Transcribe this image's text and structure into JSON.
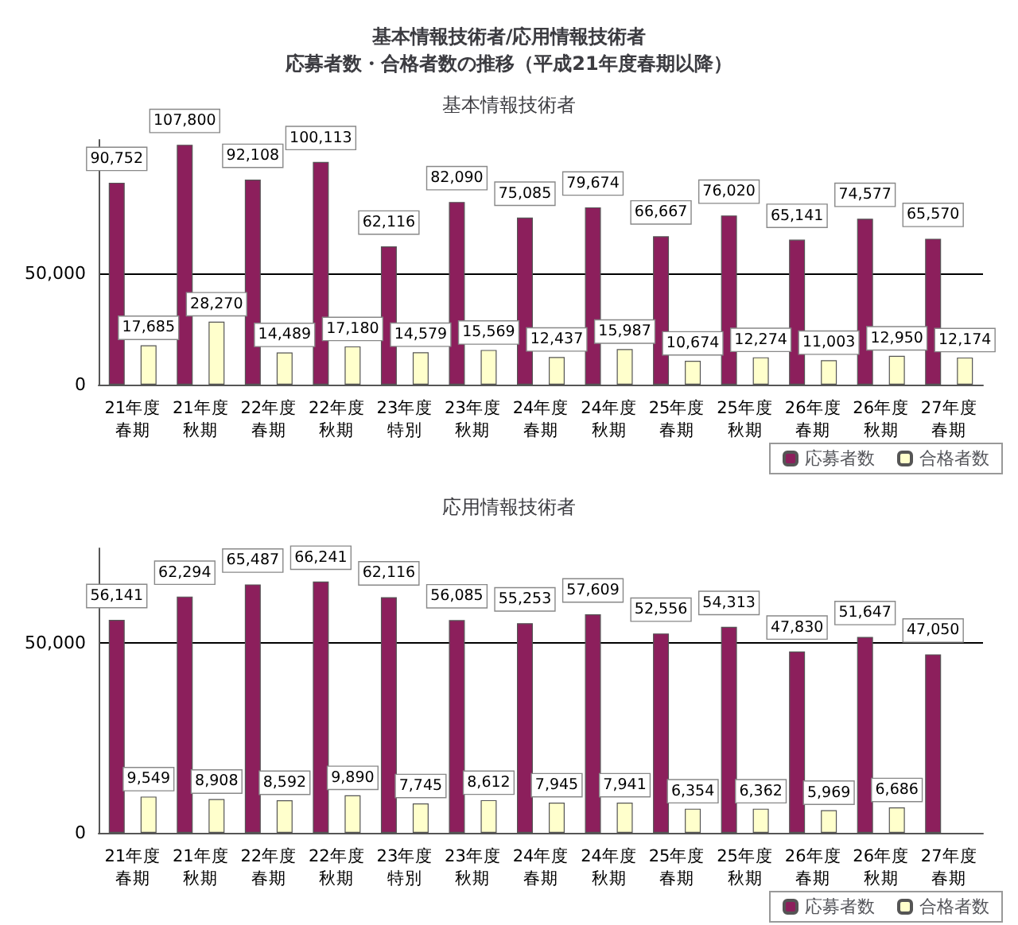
{
  "chart_data": [
    {
      "type": "bar",
      "title": "基本情報技術者/応用情報技術者",
      "subtitle": "応募者数・合格者数の推移（平成21年度春期以降）",
      "annotations": [
        "基本情報技術者"
      ],
      "categories": [
        "21年度春期",
        "21年度秋期",
        "22年度春期",
        "22年度秋期",
        "23年度特別",
        "23年度秋期",
        "24年度春期",
        "24年度秋期",
        "25年度春期",
        "25年度秋期",
        "26年度春期",
        "26年度秋期",
        "27年度春期"
      ],
      "series": [
        {
          "name": "応募者数",
          "color": "#8c1f5c",
          "values": [
            90752,
            107800,
            92108,
            100113,
            62116,
            82090,
            75085,
            79674,
            66667,
            76020,
            65141,
            74577,
            65570
          ],
          "value_labels": [
            "90,752",
            "107,800",
            "92,108",
            "100,113",
            "62,116",
            "82,090",
            "75,085",
            "79,674",
            "66,667",
            "76,020",
            "65,141",
            "74,577",
            "65,570"
          ]
        },
        {
          "name": "合格者数",
          "color": "#ffffcc",
          "values": [
            17685,
            28270,
            14489,
            17180,
            14579,
            15569,
            12437,
            15987,
            10674,
            12274,
            11003,
            12950,
            12174
          ],
          "value_labels": [
            "17,685",
            "28,270",
            "14,489",
            "17,180",
            "14,579",
            "15,569",
            "12,437",
            "15,987",
            "10,674",
            "12,274",
            "11,003",
            "12,950",
            "12,174"
          ]
        }
      ],
      "ylim": [
        0,
        110000
      ],
      "yticks": [
        0,
        {
          "value": 50000,
          "label": "50,000"
        }
      ],
      "grid": "y",
      "legend": "bottom right"
    },
    {
      "type": "bar",
      "title": "応用情報技術者",
      "categories": [
        "21年度春期",
        "21年度秋期",
        "22年度春期",
        "22年度秋期",
        "23年度特別",
        "23年度秋期",
        "24年度春期",
        "24年度秋期",
        "25年度春期",
        "25年度秋期",
        "26年度春期",
        "26年度秋期",
        "27年度春期"
      ],
      "series": [
        {
          "name": "応募者数",
          "color": "#8c1f5c",
          "values": [
            56141,
            62294,
            65487,
            66241,
            62116,
            56085,
            55253,
            57609,
            52556,
            54313,
            47830,
            51647,
            47050
          ],
          "value_labels": [
            "56,141",
            "62,294",
            "65,487",
            "66,241",
            "62,116",
            "56,085",
            "55,253",
            "57,609",
            "52,556",
            "54,313",
            "47,830",
            "51,647",
            "47,050"
          ]
        },
        {
          "name": "合格者数",
          "color": "#ffffcc",
          "values": [
            9549,
            8908,
            8592,
            9890,
            7745,
            8612,
            7945,
            7941,
            6354,
            6362,
            5969,
            6686,
            null
          ],
          "value_labels": [
            "9,549",
            "8,908",
            "8,592",
            "9,890",
            "7,745",
            "8,612",
            "7,945",
            "7,941",
            "6,354",
            "6,362",
            "5,969",
            "6,686",
            null
          ]
        }
      ],
      "ylim": [
        0,
        75000
      ],
      "yticks": [
        0,
        {
          "value": 50000,
          "label": "50,000"
        }
      ],
      "grid": "y",
      "legend": "bottom right"
    }
  ]
}
